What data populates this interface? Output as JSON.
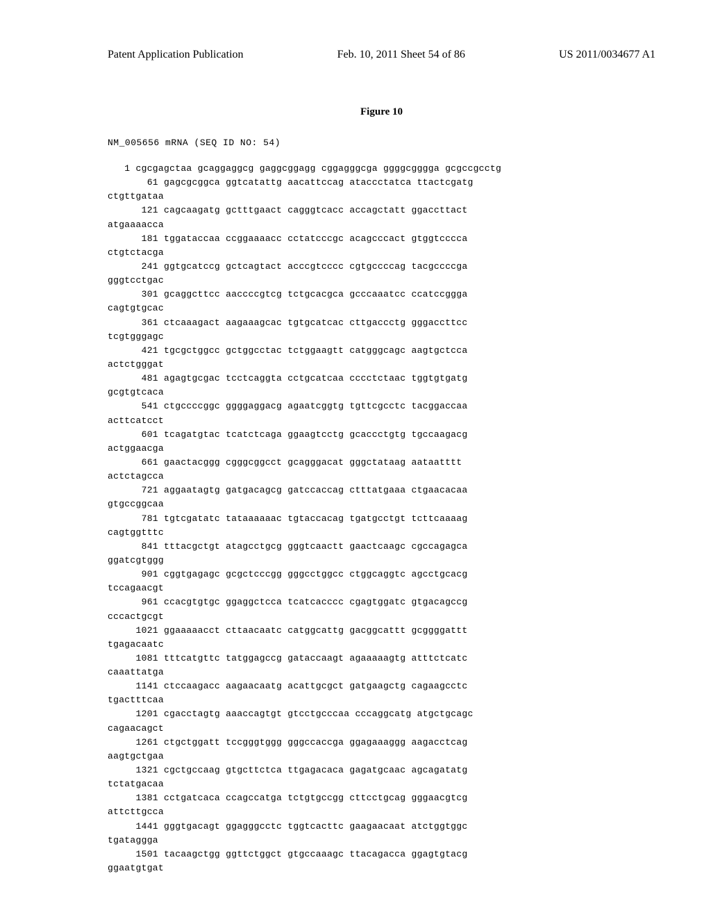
{
  "header": {
    "left": "Patent Application Publication",
    "center": "Feb. 10, 2011  Sheet 54 of 86",
    "right": "US 2011/0034677 A1"
  },
  "figure_title": "Figure 10",
  "sequence_id": "NM_005656 mRNA (SEQ ID NO: 54)",
  "sequence_lines": [
    {
      "num": "1",
      "text": "cgcgagctaa gcaggaggcg gaggcggagg cggagggcga ggggcgggga gcgccgcctg"
    },
    {
      "num": "61",
      "text": "gagcgcggca ggtcatattg aacattccag ataccctatca ttactcgatg",
      "cont": "ctgttgataa"
    },
    {
      "num": "121",
      "text": "cagcaagatg gctttgaact cagggtcacc accagctatt ggaccttact",
      "cont": "atgaaaacca"
    },
    {
      "num": "181",
      "text": "tggataccaa ccggaaaacc cctatcccgc acagcccact gtggtcccca",
      "cont": "ctgtctacga"
    },
    {
      "num": "241",
      "text": "ggtgcatccg gctcagtact acccgtcccc cgtgccccag tacgccccga",
      "cont": "gggtcctgac"
    },
    {
      "num": "301",
      "text": "gcaggcttcc aaccccgtcg tctgcacgca gcccaaatcc ccatccggga",
      "cont": "cagtgtgcac"
    },
    {
      "num": "361",
      "text": "ctcaaagact aagaaagcac tgtgcatcac cttgaccctg gggaccttcc",
      "cont": "tcgtgggagc"
    },
    {
      "num": "421",
      "text": "tgcgctggcc gctggcctac tctggaagtt catgggcagc aagtgctcca",
      "cont": "actctgggat"
    },
    {
      "num": "481",
      "text": "agagtgcgac tcctcaggta cctgcatcaa cccctctaac tggtgtgatg",
      "cont": "gcgtgtcaca"
    },
    {
      "num": "541",
      "text": "ctgccccggc ggggaggacg agaatcggtg tgttcgcctc tacggaccaa",
      "cont": "acttcatcct"
    },
    {
      "num": "601",
      "text": "tcagatgtac tcatctcaga ggaagtcctg gcaccctgtg tgccaagacg",
      "cont": "actggaacga"
    },
    {
      "num": "661",
      "text": "gaactacggg cgggcggcct gcagggacat gggctataag aataatttt",
      "cont": "actctagcca"
    },
    {
      "num": "721",
      "text": "aggaatagtg gatgacagcg gatccaccag ctttatgaaa ctgaacacaa",
      "cont": "gtgccggcaa"
    },
    {
      "num": "781",
      "text": "tgtcgatatc tataaaaaac tgtaccacag tgatgcctgt tcttcaaaag",
      "cont": "cagtggtttc"
    },
    {
      "num": "841",
      "text": "tttacgctgt atagcctgcg gggtcaactt gaactcaagc cgccagagca",
      "cont": "ggatcgtggg"
    },
    {
      "num": "901",
      "text": "cggtgagagc gcgctcccgg gggcctggcc ctggcaggtc agcctgcacg",
      "cont": "tccagaacgt"
    },
    {
      "num": "961",
      "text": "ccacgtgtgc ggaggctcca tcatcacccc cgagtggatc gtgacagccg",
      "cont": "cccactgcgt"
    },
    {
      "num": "1021",
      "text": "ggaaaaacct cttaacaatc catggcattg gacggcattt gcggggattt",
      "cont": "tgagacaatc"
    },
    {
      "num": "1081",
      "text": "tttcatgttc tatggagccg gataccaagt agaaaaagtg atttctcatc",
      "cont": "caaattatga"
    },
    {
      "num": "1141",
      "text": "ctccaagacc aagaacaatg acattgcgct gatgaagctg cagaagcctc",
      "cont": "tgactttcaa"
    },
    {
      "num": "1201",
      "text": "cgacctagtg aaaccagtgt gtcctgcccaa cccaggcatg atgctgcagc",
      "cont": "cagaacagct"
    },
    {
      "num": "1261",
      "text": "ctgctggatt tccgggtggg gggccaccga ggagaaaggg aagacctcag",
      "cont": "aagtgctgaa"
    },
    {
      "num": "1321",
      "text": "cgctgccaag gtgcttctca ttgagacaca gagatgcaac agcagatatg",
      "cont": "tctatgacaa"
    },
    {
      "num": "1381",
      "text": "cctgatcaca ccagccatga tctgtgccgg cttcctgcag gggaacgtcg",
      "cont": "attcttgcca"
    },
    {
      "num": "1441",
      "text": "gggtgacagt ggagggcctc tggtcacttc gaagaacaat atctggtggc",
      "cont": "tgataggga"
    },
    {
      "num": "1501",
      "text": "tacaagctgg ggttctggct gtgccaaagc ttacagacca ggagtgtacg",
      "cont": "ggaatgtgat"
    }
  ],
  "styling": {
    "page_bg": "#ffffff",
    "text_color": "#000000",
    "header_font_family": "Times New Roman",
    "sequence_font_family": "Courier New",
    "sequence_font_size": 13,
    "header_font_size": 16,
    "title_font_size": 15
  }
}
